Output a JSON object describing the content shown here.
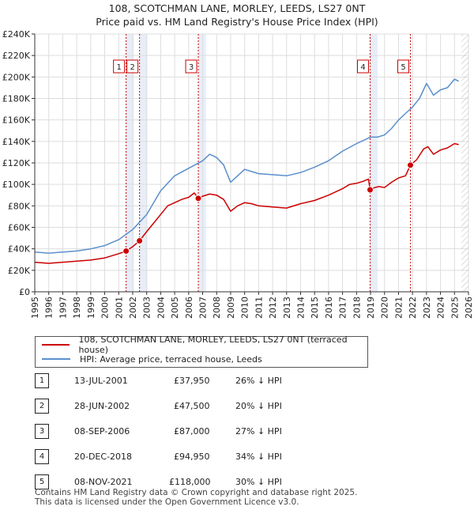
{
  "chart_data": {
    "type": "line",
    "title": "108, SCOTCHMAN LANE, MORLEY, LEEDS, LS27 0NT",
    "subtitle": "Price paid vs. HM Land Registry's House Price Index (HPI)",
    "y_ticks": [
      "£0",
      "£20K",
      "£40K",
      "£60K",
      "£80K",
      "£100K",
      "£120K",
      "£140K",
      "£160K",
      "£180K",
      "£200K",
      "£220K",
      "£240K"
    ],
    "x_ticks": [
      "1995",
      "1996",
      "1997",
      "1998",
      "1999",
      "2000",
      "2001",
      "2002",
      "2003",
      "2004",
      "2005",
      "2006",
      "2007",
      "2008",
      "2009",
      "2010",
      "2011",
      "2012",
      "2013",
      "2014",
      "2015",
      "2016",
      "2017",
      "2018",
      "2019",
      "2020",
      "2021",
      "2022",
      "2023",
      "2024",
      "2025",
      "2026"
    ],
    "xlim": [
      1995,
      2026
    ],
    "ylim": [
      0,
      240000
    ],
    "grid": true,
    "colors": {
      "price": "#cc0000",
      "hpi": "#5b8fcc",
      "band": "#e8eef8",
      "sale_line": "#cc0000",
      "future_hatch": "#aaaaaa"
    },
    "series": [
      {
        "name": "108, SCOTCHMAN LANE, MORLEY, LEEDS, LS27 0NT (terraced house)",
        "color": "#cc0000",
        "points": [
          [
            1995.0,
            27500
          ],
          [
            1996.0,
            26500
          ],
          [
            1997.0,
            27500
          ],
          [
            1998.0,
            28500
          ],
          [
            1999.0,
            29500
          ],
          [
            2000.0,
            31500
          ],
          [
            2001.0,
            35500
          ],
          [
            2001.53,
            37950
          ],
          [
            2002.0,
            42000
          ],
          [
            2002.49,
            47500
          ],
          [
            2003.0,
            56000
          ],
          [
            2003.5,
            64000
          ],
          [
            2004.0,
            72000
          ],
          [
            2004.5,
            80000
          ],
          [
            2005.0,
            83000
          ],
          [
            2005.5,
            86000
          ],
          [
            2006.0,
            88000
          ],
          [
            2006.4,
            92000
          ],
          [
            2006.69,
            87000
          ],
          [
            2007.0,
            89000
          ],
          [
            2007.5,
            91000
          ],
          [
            2008.0,
            90000
          ],
          [
            2008.5,
            86000
          ],
          [
            2009.0,
            75000
          ],
          [
            2009.5,
            80000
          ],
          [
            2010.0,
            83000
          ],
          [
            2010.5,
            82000
          ],
          [
            2011.0,
            80000
          ],
          [
            2012.0,
            79000
          ],
          [
            2013.0,
            78000
          ],
          [
            2014.0,
            82000
          ],
          [
            2015.0,
            85000
          ],
          [
            2016.0,
            90000
          ],
          [
            2017.0,
            96000
          ],
          [
            2017.5,
            100000
          ],
          [
            2018.0,
            101000
          ],
          [
            2018.5,
            103000
          ],
          [
            2018.85,
            105000
          ],
          [
            2018.97,
            94950
          ],
          [
            2019.3,
            97000
          ],
          [
            2019.6,
            98000
          ],
          [
            2020.0,
            97000
          ],
          [
            2020.5,
            102000
          ],
          [
            2021.0,
            106000
          ],
          [
            2021.5,
            108000
          ],
          [
            2021.85,
            118000
          ],
          [
            2022.3,
            123000
          ],
          [
            2022.8,
            133000
          ],
          [
            2023.1,
            135000
          ],
          [
            2023.5,
            128000
          ],
          [
            2024.0,
            132000
          ],
          [
            2024.5,
            134000
          ],
          [
            2025.0,
            138000
          ],
          [
            2025.3,
            137000
          ]
        ]
      },
      {
        "name": "HPI: Average price, terraced house, Leeds",
        "color": "#5b8fcc",
        "points": [
          [
            1995.0,
            37000
          ],
          [
            1996.0,
            36000
          ],
          [
            1997.0,
            37000
          ],
          [
            1998.0,
            38000
          ],
          [
            1999.0,
            40000
          ],
          [
            2000.0,
            43000
          ],
          [
            2001.0,
            48500
          ],
          [
            2002.0,
            58000
          ],
          [
            2003.0,
            72000
          ],
          [
            2004.0,
            94000
          ],
          [
            2005.0,
            108000
          ],
          [
            2006.0,
            115000
          ],
          [
            2007.0,
            122000
          ],
          [
            2007.5,
            128000
          ],
          [
            2008.0,
            125000
          ],
          [
            2008.5,
            118000
          ],
          [
            2009.0,
            102000
          ],
          [
            2009.5,
            108000
          ],
          [
            2010.0,
            114000
          ],
          [
            2010.5,
            112000
          ],
          [
            2011.0,
            110000
          ],
          [
            2012.0,
            109000
          ],
          [
            2013.0,
            108000
          ],
          [
            2014.0,
            111000
          ],
          [
            2015.0,
            116000
          ],
          [
            2016.0,
            122000
          ],
          [
            2017.0,
            131000
          ],
          [
            2018.0,
            138000
          ],
          [
            2019.0,
            144000
          ],
          [
            2019.5,
            144000
          ],
          [
            2020.0,
            146000
          ],
          [
            2020.5,
            152000
          ],
          [
            2021.0,
            160000
          ],
          [
            2021.5,
            166000
          ],
          [
            2022.0,
            172000
          ],
          [
            2022.5,
            180000
          ],
          [
            2023.0,
            194000
          ],
          [
            2023.5,
            183000
          ],
          [
            2024.0,
            188000
          ],
          [
            2024.5,
            190000
          ],
          [
            2025.0,
            198000
          ],
          [
            2025.3,
            196000
          ]
        ]
      }
    ],
    "sales": [
      {
        "num": "1",
        "date": "13-JUL-2001",
        "price": "£37,950",
        "hpi": "26% ↓ HPI",
        "x": 2001.53,
        "y": 37950
      },
      {
        "num": "2",
        "date": "28-JUN-2002",
        "price": "£47,500",
        "hpi": "20% ↓ HPI",
        "x": 2002.49,
        "y": 47500
      },
      {
        "num": "3",
        "date": "08-SEP-2006",
        "price": "£87,000",
        "hpi": "27% ↓ HPI",
        "x": 2006.69,
        "y": 87000
      },
      {
        "num": "4",
        "date": "20-DEC-2018",
        "price": "£94,950",
        "hpi": "34% ↓ HPI",
        "x": 2018.97,
        "y": 94950
      },
      {
        "num": "5",
        "date": "08-NOV-2021",
        "price": "£118,000",
        "hpi": "30% ↓ HPI",
        "x": 2021.85,
        "y": 118000
      }
    ],
    "future_from": 2025.5
  },
  "legend": {
    "price_label": "108, SCOTCHMAN LANE, MORLEY, LEEDS, LS27 0NT (terraced house)",
    "hpi_label": "HPI: Average price, terraced house, Leeds"
  },
  "footer": {
    "line1": "Contains HM Land Registry data © Crown copyright and database right 2025.",
    "line2": "This data is licensed under the Open Government Licence v3.0."
  }
}
